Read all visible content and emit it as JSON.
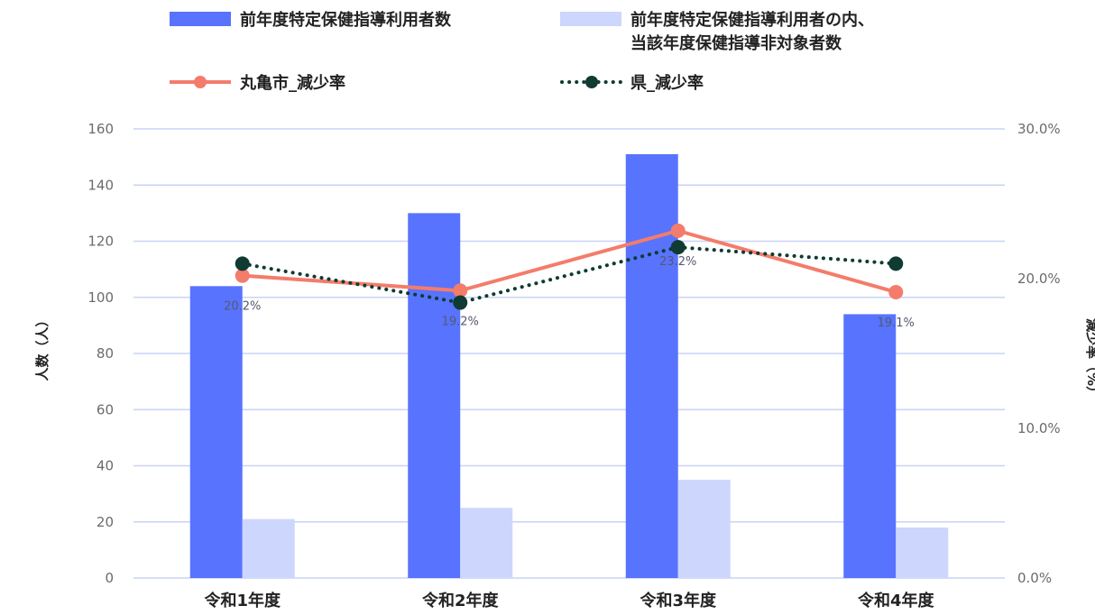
{
  "chart_data": {
    "type": "bar",
    "categories": [
      "令和1年度",
      "令和2年度",
      "令和3年度",
      "令和4年度"
    ],
    "series": [
      {
        "name": "前年度特定保健指導利用者数",
        "kind": "bar",
        "axis": "left",
        "color": "#5873fe",
        "values": [
          104,
          130,
          151,
          94
        ]
      },
      {
        "name": "前年度特定保健指導利用者の内、\n当該年度保健指導非対象者数",
        "kind": "bar",
        "axis": "left",
        "color": "#cdd6fd",
        "values": [
          21,
          25,
          35,
          18
        ]
      },
      {
        "name": "丸亀市_減少率",
        "kind": "line",
        "axis": "right",
        "color": "#f47c6b",
        "values": [
          20.2,
          19.2,
          23.2,
          19.1
        ],
        "labels": [
          "20.2%",
          "19.2%",
          "23.2%",
          "19.1%"
        ]
      },
      {
        "name": "県_減少率",
        "kind": "line-dotted",
        "axis": "right",
        "color": "#0f3b32",
        "values": [
          21.0,
          18.4,
          22.1,
          21.0
        ]
      }
    ],
    "left_axis": {
      "title": "人数（人）",
      "ylim": [
        0,
        160
      ],
      "ticks": [
        "0",
        "20",
        "40",
        "60",
        "80",
        "100",
        "120",
        "140",
        "160"
      ]
    },
    "right_axis": {
      "title": "減少率（%）",
      "ylim": [
        0,
        30
      ],
      "ticks": [
        "0.0%",
        "10.0%",
        "20.0%",
        "30.0%"
      ]
    },
    "grid": true,
    "legend_position": "top"
  }
}
